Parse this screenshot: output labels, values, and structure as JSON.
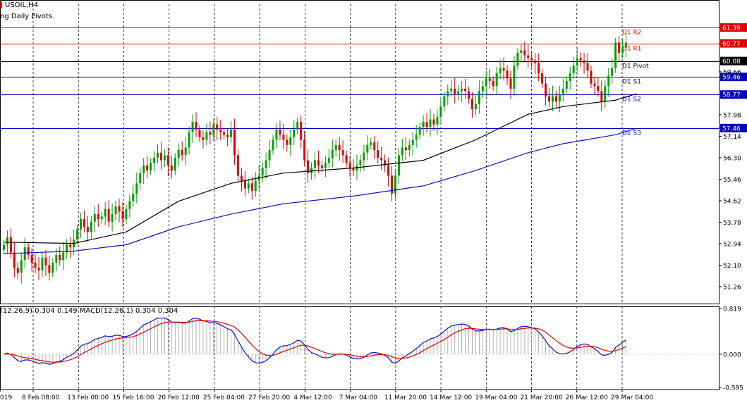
{
  "header": {
    "symbol_label": "USOIL,H4",
    "indicator_label": "ng Daily Pivots."
  },
  "macd_header": "(12,26,9) 0.304 0.149 MACD(12,26,1) 0.304 0.304",
  "colors": {
    "background": "#ffffff",
    "bull_candle": "#00a000",
    "bear_candle": "#e00000",
    "ma_fast": "#000000",
    "ma_slow": "#1010c0",
    "pivot_resistance": "#e00000",
    "pivot_support": "#0000c0",
    "pivot_main": "#000000",
    "macd_line": "#1010c0",
    "signal_line": "#e00000",
    "histogram": "#a0a0a0"
  },
  "chart_data": [
    {
      "type": "candlestick",
      "title": "USOIL,H4",
      "ylim": [
        50.6,
        62.3
      ],
      "y_ticks": [
        61.39,
        60.77,
        60.08,
        59.66,
        59.46,
        58.77,
        57.98,
        57.46,
        57.14,
        56.3,
        55.46,
        54.62,
        53.78,
        52.94,
        52.1,
        51.26
      ],
      "price_badges": [
        {
          "value": 61.39,
          "kind": "resistance"
        },
        {
          "value": 60.77,
          "kind": "resistance"
        },
        {
          "value": 60.08,
          "kind": "pivot"
        },
        {
          "value": 59.46,
          "kind": "support"
        },
        {
          "value": 58.77,
          "kind": "support"
        },
        {
          "value": 57.46,
          "kind": "support"
        }
      ],
      "pivot_levels": [
        {
          "label": "D1 R2",
          "value": 61.39,
          "kind": "resistance"
        },
        {
          "label": "D1 R1",
          "value": 60.77,
          "kind": "resistance"
        },
        {
          "label": "D1 Pivot",
          "value": 60.08,
          "kind": "pivot"
        },
        {
          "label": "D1 S1",
          "value": 59.46,
          "kind": "support"
        },
        {
          "label": "D1 S2",
          "value": 58.77,
          "kind": "support"
        },
        {
          "label": "D1 S3",
          "value": 57.46,
          "kind": "support"
        }
      ],
      "x_labels": [
        "019",
        "8 Feb 08:00",
        "13 Feb 00:00",
        "15 Feb 16:00",
        "20 Feb 12:00",
        "25 Feb 04:00",
        "27 Feb 20:00",
        "4 Mar 12:00",
        "7 Mar 04:00",
        "11 Mar 20:00",
        "14 Mar 12:00",
        "19 Mar 04:00",
        "21 Mar 20:00",
        "26 Mar 12:00",
        "29 Mar 04:00"
      ],
      "close_series": [
        52.9,
        53.2,
        52.6,
        52.0,
        51.8,
        52.3,
        52.8,
        52.5,
        52.2,
        52.0,
        51.9,
        52.4,
        52.1,
        51.8,
        52.2,
        52.5,
        52.3,
        52.6,
        52.9,
        52.8,
        53.1,
        53.5,
        53.9,
        53.6,
        53.4,
        53.8,
        54.1,
        53.9,
        54.0,
        54.3,
        53.8,
        54.1,
        54.4,
        54.2,
        53.9,
        54.3,
        54.6,
        54.9,
        55.3,
        55.7,
        56.0,
        55.8,
        56.1,
        56.3,
        56.5,
        56.2,
        56.4,
        56.0,
        55.8,
        56.3,
        56.6,
        56.4,
        56.7,
        57.3,
        57.7,
        57.4,
        57.1,
        57.0,
        57.3,
        57.2,
        57.6,
        57.4,
        57.3,
        57.2,
        57.1,
        57.4,
        56.4,
        55.6,
        55.4,
        55.1,
        55.3,
        55.0,
        55.4,
        55.6,
        55.9,
        56.2,
        56.6,
        57.0,
        57.4,
        57.2,
        57.0,
        56.8,
        57.1,
        57.4,
        57.7,
        57.0,
        56.2,
        55.7,
        55.9,
        56.2,
        56.0,
        55.9,
        56.1,
        56.3,
        56.6,
        56.8,
        56.6,
        56.4,
        56.1,
        55.9,
        55.8,
        56.0,
        56.2,
        56.5,
        56.8,
        56.9,
        56.6,
        56.3,
        56.2,
        56.0,
        55.6,
        54.9,
        55.6,
        56.4,
        56.7,
        56.6,
        56.8,
        57.0,
        57.2,
        57.5,
        57.7,
        57.5,
        57.8,
        57.6,
        57.9,
        58.3,
        58.7,
        58.9,
        59.0,
        58.8,
        58.9,
        59.0,
        58.9,
        58.6,
        58.2,
        58.4,
        58.9,
        59.1,
        59.4,
        59.3,
        59.1,
        59.6,
        59.8,
        59.7,
        59.4,
        59.0,
        59.9,
        60.4,
        60.5,
        60.3,
        60.2,
        60.1,
        60.0,
        59.6,
        59.2,
        58.7,
        58.5,
        58.7,
        58.5,
        58.8,
        59.0,
        59.3,
        59.6,
        59.9,
        60.2,
        60.1,
        60.0,
        59.7,
        59.2,
        59.1,
        58.9,
        58.5,
        59.1,
        59.5,
        59.8,
        60.8,
        60.4,
        60.6,
        60.8
      ],
      "moving_averages": [
        {
          "name": "ma_fast",
          "color": "#000000",
          "values": [
            [
              0,
              53.0
            ],
            [
              20,
              52.95
            ],
            [
              35,
              53.4
            ],
            [
              50,
              54.6
            ],
            [
              65,
              55.3
            ],
            [
              80,
              55.7
            ],
            [
              100,
              55.9
            ],
            [
              120,
              56.2
            ],
            [
              135,
              57.0
            ],
            [
              150,
              58.0
            ],
            [
              160,
              58.3
            ],
            [
              175,
              58.55
            ],
            [
              181,
              58.8
            ]
          ]
        },
        {
          "name": "ma_slow",
          "color": "#1010c0",
          "values": [
            [
              0,
              52.55
            ],
            [
              20,
              52.65
            ],
            [
              35,
              52.9
            ],
            [
              50,
              53.6
            ],
            [
              65,
              54.1
            ],
            [
              80,
              54.5
            ],
            [
              100,
              54.8
            ],
            [
              120,
              55.2
            ],
            [
              135,
              55.8
            ],
            [
              150,
              56.5
            ],
            [
              160,
              56.85
            ],
            [
              175,
              57.2
            ],
            [
              181,
              57.45
            ]
          ]
        }
      ]
    },
    {
      "type": "macd",
      "title": "MACD",
      "ylim": [
        -0.595,
        0.819
      ],
      "y_ticks": [
        0.819,
        0.0,
        -0.595
      ],
      "y_tick_labels": [
        "0.819",
        "0.000",
        "-0.595"
      ]
    }
  ]
}
